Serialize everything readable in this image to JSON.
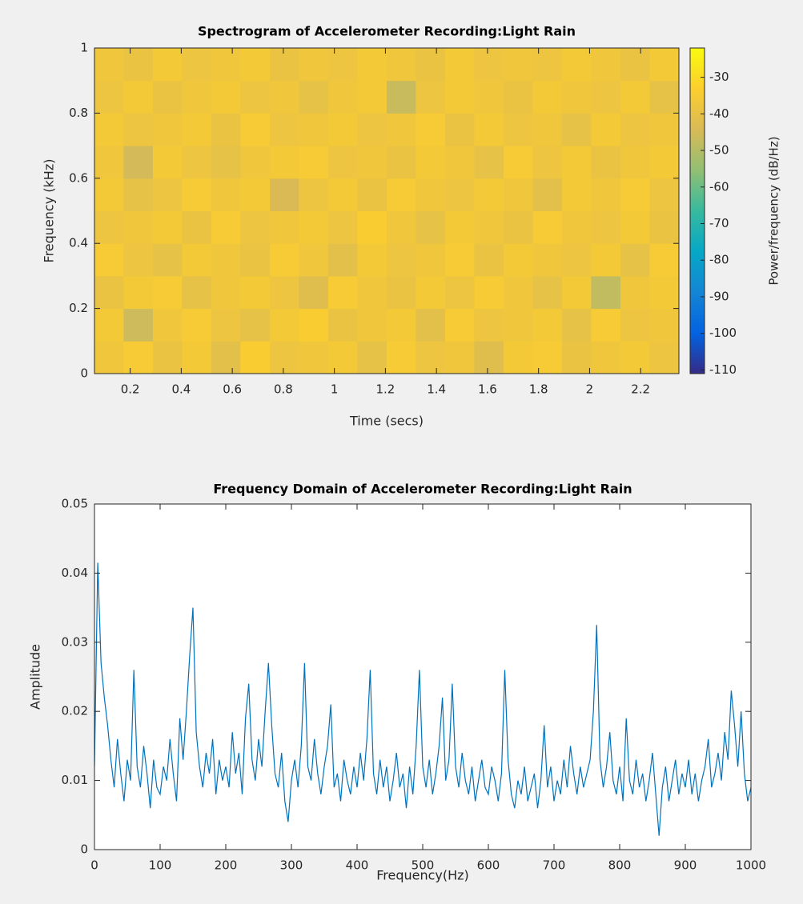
{
  "chart_data": [
    {
      "type": "heatmap",
      "title": "Spectrogram of Accelerometer Recording:Light Rain",
      "xlabel": "Time (secs)",
      "ylabel": "Frequency (kHz)",
      "x": [
        0.117,
        0.231,
        0.346,
        0.46,
        0.575,
        0.689,
        0.804,
        0.918,
        1.033,
        1.147,
        1.262,
        1.376,
        1.491,
        1.605,
        1.72,
        1.834,
        1.949,
        2.063,
        2.178,
        2.292
      ],
      "y": [
        0.05,
        0.15,
        0.25,
        0.35,
        0.45,
        0.55,
        0.65,
        0.75,
        0.85,
        0.95
      ],
      "z": [
        [
          -37,
          -35,
          -39,
          -36,
          -41,
          -34,
          -38,
          -37,
          -36,
          -40,
          -35,
          -38,
          -37,
          -42,
          -36,
          -35,
          -39,
          -37,
          -36,
          -38
        ],
        [
          -36,
          -46,
          -37,
          -35,
          -38,
          -40,
          -36,
          -34,
          -39,
          -37,
          -36,
          -41,
          -35,
          -38,
          -37,
          -36,
          -40,
          -35,
          -38,
          -37
        ],
        [
          -39,
          -36,
          -35,
          -40,
          -37,
          -36,
          -38,
          -42,
          -35,
          -37,
          -39,
          -36,
          -38,
          -35,
          -37,
          -40,
          -36,
          -48,
          -37,
          -36
        ],
        [
          -35,
          -38,
          -40,
          -36,
          -37,
          -39,
          -35,
          -37,
          -41,
          -36,
          -38,
          -37,
          -35,
          -39,
          -36,
          -37,
          -38,
          -36,
          -40,
          -35
        ],
        [
          -38,
          -37,
          -36,
          -39,
          -35,
          -38,
          -37,
          -36,
          -38,
          -34,
          -37,
          -40,
          -36,
          -37,
          -39,
          -35,
          -37,
          -38,
          -36,
          -39
        ],
        [
          -36,
          -40,
          -38,
          -35,
          -37,
          -36,
          -44,
          -38,
          -36,
          -39,
          -35,
          -37,
          -38,
          -36,
          -37,
          -41,
          -36,
          -37,
          -35,
          -38
        ],
        [
          -37,
          -45,
          -36,
          -38,
          -40,
          -37,
          -36,
          -35,
          -38,
          -37,
          -39,
          -36,
          -37,
          -40,
          -35,
          -38,
          -36,
          -39,
          -37,
          -36
        ],
        [
          -36,
          -38,
          -37,
          -36,
          -39,
          -35,
          -38,
          -37,
          -36,
          -38,
          -37,
          -35,
          -39,
          -36,
          -38,
          -37,
          -40,
          -36,
          -38,
          -37
        ],
        [
          -38,
          -36,
          -39,
          -37,
          -36,
          -38,
          -37,
          -40,
          -37,
          -36,
          -47,
          -38,
          -36,
          -37,
          -39,
          -36,
          -37,
          -38,
          -36,
          -40
        ],
        [
          -37,
          -39,
          -36,
          -38,
          -37,
          -36,
          -39,
          -37,
          -38,
          -36,
          -37,
          -39,
          -36,
          -38,
          -37,
          -38,
          -36,
          -37,
          -39,
          -36
        ]
      ],
      "xlim": [
        0.06,
        2.35
      ],
      "ylim": [
        0,
        1
      ],
      "xticks": [
        0.2,
        0.4,
        0.6,
        0.8,
        1,
        1.2,
        1.4,
        1.6,
        1.8,
        2,
        2.2
      ],
      "yticks": [
        0,
        0.2,
        0.4,
        0.6,
        0.8,
        1
      ],
      "colorbar": {
        "label": "Power/frequency (dB/Hz)",
        "lim": [
          -111,
          -22
        ],
        "ticks": [
          -30,
          -40,
          -50,
          -60,
          -70,
          -80,
          -90,
          -100,
          -110
        ]
      }
    },
    {
      "type": "line",
      "title": "Frequency Domain of Accelerometer Recording:Light Rain",
      "xlabel": "Frequency(Hz)",
      "ylabel": "Amplitude",
      "color": "#0072bd",
      "x": [
        0,
        5,
        10,
        15,
        20,
        25,
        30,
        35,
        40,
        45,
        50,
        55,
        60,
        65,
        70,
        75,
        80,
        85,
        90,
        95,
        100,
        105,
        110,
        115,
        120,
        125,
        130,
        135,
        140,
        145,
        150,
        155,
        160,
        165,
        170,
        175,
        180,
        185,
        190,
        195,
        200,
        205,
        210,
        215,
        220,
        225,
        230,
        235,
        240,
        245,
        250,
        255,
        260,
        265,
        270,
        275,
        280,
        285,
        290,
        295,
        300,
        305,
        310,
        315,
        320,
        325,
        330,
        335,
        340,
        345,
        350,
        355,
        360,
        365,
        370,
        375,
        380,
        385,
        390,
        395,
        400,
        405,
        410,
        415,
        420,
        425,
        430,
        435,
        440,
        445,
        450,
        455,
        460,
        465,
        470,
        475,
        480,
        485,
        490,
        495,
        500,
        505,
        510,
        515,
        520,
        525,
        530,
        535,
        540,
        545,
        550,
        555,
        560,
        565,
        570,
        575,
        580,
        585,
        590,
        595,
        600,
        605,
        610,
        615,
        620,
        625,
        630,
        635,
        640,
        645,
        650,
        655,
        660,
        665,
        670,
        675,
        680,
        685,
        690,
        695,
        700,
        705,
        710,
        715,
        720,
        725,
        730,
        735,
        740,
        745,
        750,
        755,
        760,
        765,
        770,
        775,
        780,
        785,
        790,
        795,
        800,
        805,
        810,
        815,
        820,
        825,
        830,
        835,
        840,
        845,
        850,
        855,
        860,
        865,
        870,
        875,
        880,
        885,
        890,
        895,
        900,
        905,
        910,
        915,
        920,
        925,
        930,
        935,
        940,
        945,
        950,
        955,
        960,
        965,
        970,
        975,
        980,
        985,
        990,
        995,
        1000
      ],
      "values": [
        0.012,
        0.0415,
        0.027,
        0.022,
        0.018,
        0.013,
        0.009,
        0.016,
        0.011,
        0.007,
        0.013,
        0.01,
        0.026,
        0.012,
        0.009,
        0.015,
        0.011,
        0.006,
        0.013,
        0.009,
        0.008,
        0.012,
        0.01,
        0.016,
        0.011,
        0.007,
        0.019,
        0.013,
        0.02,
        0.028,
        0.035,
        0.017,
        0.012,
        0.009,
        0.014,
        0.011,
        0.016,
        0.008,
        0.013,
        0.01,
        0.012,
        0.009,
        0.017,
        0.011,
        0.014,
        0.008,
        0.019,
        0.024,
        0.013,
        0.01,
        0.016,
        0.012,
        0.02,
        0.027,
        0.018,
        0.011,
        0.009,
        0.014,
        0.007,
        0.004,
        0.01,
        0.013,
        0.009,
        0.015,
        0.027,
        0.012,
        0.01,
        0.016,
        0.011,
        0.008,
        0.012,
        0.015,
        0.021,
        0.009,
        0.011,
        0.007,
        0.013,
        0.01,
        0.008,
        0.012,
        0.009,
        0.014,
        0.01,
        0.016,
        0.026,
        0.011,
        0.008,
        0.013,
        0.009,
        0.012,
        0.007,
        0.01,
        0.014,
        0.009,
        0.011,
        0.006,
        0.012,
        0.008,
        0.015,
        0.026,
        0.012,
        0.009,
        0.013,
        0.008,
        0.011,
        0.015,
        0.022,
        0.01,
        0.013,
        0.024,
        0.012,
        0.009,
        0.014,
        0.01,
        0.008,
        0.012,
        0.007,
        0.01,
        0.013,
        0.009,
        0.008,
        0.012,
        0.01,
        0.007,
        0.011,
        0.026,
        0.013,
        0.008,
        0.006,
        0.01,
        0.008,
        0.012,
        0.007,
        0.009,
        0.011,
        0.006,
        0.01,
        0.018,
        0.009,
        0.012,
        0.007,
        0.01,
        0.008,
        0.013,
        0.009,
        0.015,
        0.011,
        0.008,
        0.012,
        0.009,
        0.011,
        0.013,
        0.02,
        0.0325,
        0.013,
        0.009,
        0.012,
        0.017,
        0.01,
        0.008,
        0.012,
        0.007,
        0.019,
        0.01,
        0.008,
        0.013,
        0.009,
        0.011,
        0.007,
        0.01,
        0.014,
        0.008,
        0.002,
        0.009,
        0.012,
        0.007,
        0.01,
        0.013,
        0.008,
        0.011,
        0.009,
        0.013,
        0.008,
        0.011,
        0.007,
        0.01,
        0.012,
        0.016,
        0.009,
        0.011,
        0.014,
        0.01,
        0.017,
        0.013,
        0.023,
        0.018,
        0.012,
        0.02,
        0.011,
        0.007,
        0.009
      ],
      "xlim": [
        0,
        1000
      ],
      "ylim": [
        0,
        0.05
      ],
      "xticks": [
        0,
        100,
        200,
        300,
        400,
        500,
        600,
        700,
        800,
        900,
        1000
      ],
      "yticks": [
        0,
        0.01,
        0.02,
        0.03,
        0.04,
        0.05
      ]
    }
  ]
}
